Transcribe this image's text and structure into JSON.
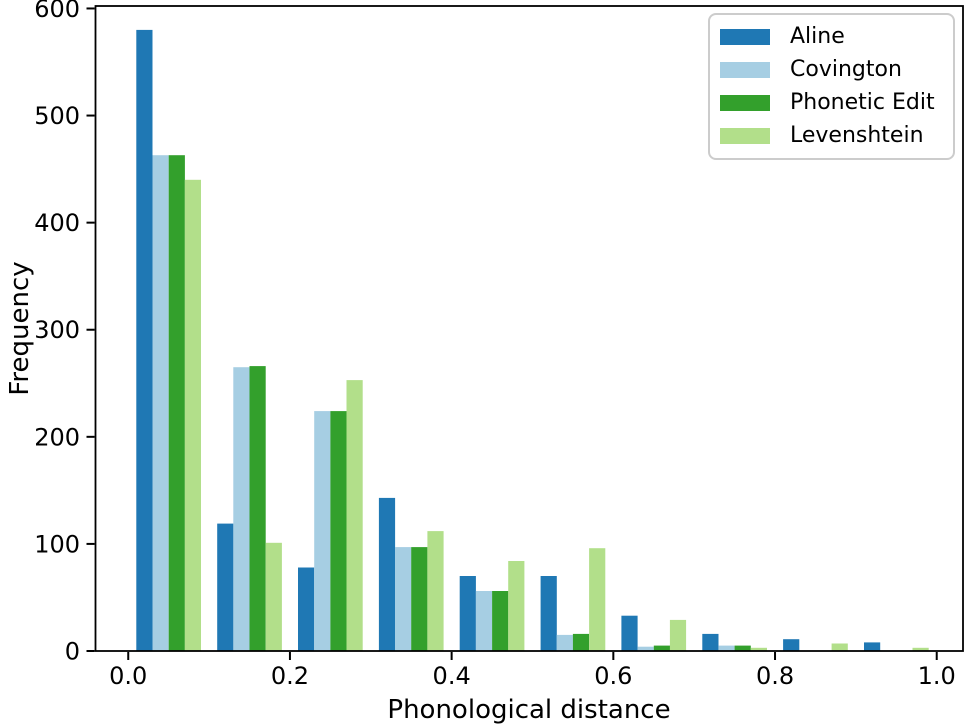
{
  "chart_data": {
    "type": "bar",
    "style": "grouped-histogram",
    "title": "",
    "xlabel": "Phonological distance",
    "ylabel": "Frequency",
    "bins": {
      "start": 0.0,
      "end": 1.0,
      "width": 0.1
    },
    "categories": [
      "0.0-0.1",
      "0.1-0.2",
      "0.2-0.3",
      "0.3-0.4",
      "0.4-0.5",
      "0.5-0.6",
      "0.6-0.7",
      "0.7-0.8",
      "0.8-0.9",
      "0.9-1.0"
    ],
    "series": [
      {
        "name": "Aline",
        "color": "#1f78b4",
        "values": [
          580,
          119,
          78,
          143,
          70,
          70,
          33,
          16,
          11,
          8
        ]
      },
      {
        "name": "Covington",
        "color": "#a6cee3",
        "values": [
          463,
          265,
          224,
          97,
          56,
          15,
          4,
          5,
          0,
          0
        ]
      },
      {
        "name": "Phonetic Edit",
        "color": "#33a02c",
        "values": [
          463,
          266,
          224,
          97,
          56,
          16,
          5,
          5,
          0,
          0
        ]
      },
      {
        "name": "Levenshtein",
        "color": "#b2df8a",
        "values": [
          440,
          101,
          253,
          112,
          84,
          96,
          29,
          3,
          7,
          3
        ]
      }
    ],
    "xtick_values": [
      0.0,
      0.2,
      0.4,
      0.6,
      0.8,
      1.0
    ],
    "xtick_labels": [
      "0.0",
      "0.2",
      "0.4",
      "0.6",
      "0.8",
      "1.0"
    ],
    "ytick_values": [
      0,
      100,
      200,
      300,
      400,
      500,
      600
    ],
    "ytick_labels": [
      "0",
      "100",
      "200",
      "300",
      "400",
      "500",
      "600"
    ],
    "xlim": [
      -0.0405,
      1.0325
    ],
    "ylim": [
      0,
      602.3
    ],
    "grid": false,
    "legend_position": "upper right",
    "axis_color": "#000000",
    "text_color": "#000000",
    "background": "#ffffff",
    "legend_border_color": "#cccccc",
    "legend_background": "rgba(255,255,255,0.8)"
  }
}
